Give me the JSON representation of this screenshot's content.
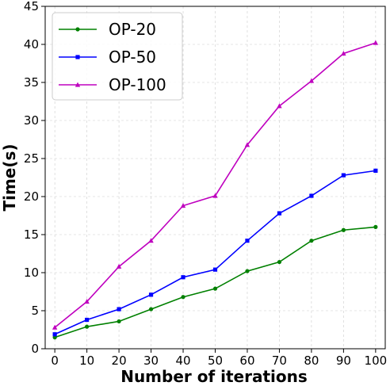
{
  "chart_data": {
    "type": "line",
    "title": "",
    "xlabel": "Number of iterations",
    "ylabel": "Time(s)",
    "x": [
      0,
      10,
      20,
      30,
      40,
      50,
      60,
      70,
      80,
      90,
      100
    ],
    "xlim": [
      -3,
      103
    ],
    "ylim": [
      0,
      45
    ],
    "xticks": [
      "0",
      "10",
      "20",
      "30",
      "40",
      "50",
      "60",
      "70",
      "80",
      "90",
      "100"
    ],
    "yticks": [
      "0",
      "5",
      "10",
      "15",
      "20",
      "25",
      "30",
      "35",
      "40",
      "45"
    ],
    "grid": true,
    "legend_position": "top-left",
    "series": [
      {
        "name": "OP-20",
        "color": "#008000",
        "marker": "circle",
        "values": [
          1.5,
          2.9,
          3.6,
          5.2,
          6.8,
          7.9,
          10.2,
          11.4,
          14.2,
          15.6,
          16.0
        ]
      },
      {
        "name": "OP-50",
        "color": "#0000ff",
        "marker": "square",
        "values": [
          1.9,
          3.8,
          5.2,
          7.1,
          9.4,
          10.4,
          14.2,
          17.8,
          20.1,
          22.8,
          23.4
        ]
      },
      {
        "name": "OP-100",
        "color": "#bf00bf",
        "marker": "triangle",
        "values": [
          2.8,
          6.2,
          10.8,
          14.2,
          18.8,
          20.1,
          26.8,
          31.9,
          35.2,
          38.8,
          40.2
        ]
      }
    ]
  }
}
